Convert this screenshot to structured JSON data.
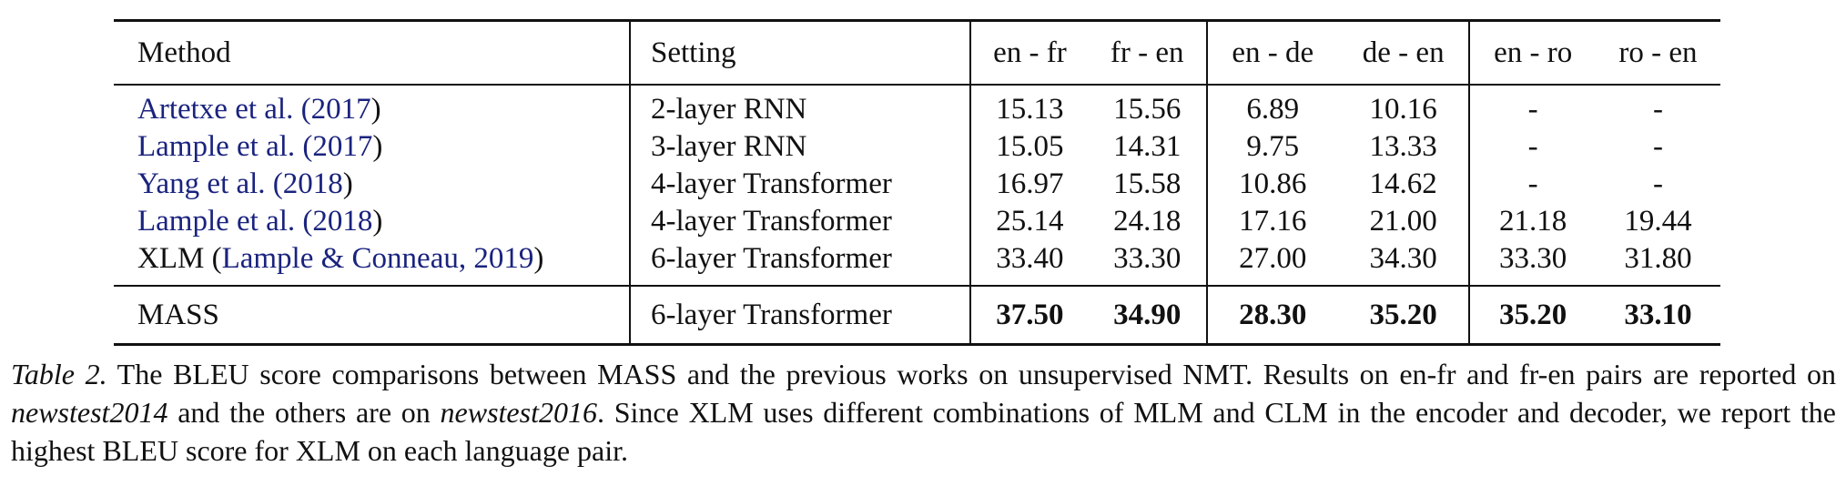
{
  "table": {
    "headers": [
      "Method",
      "Setting",
      "en - fr",
      "fr - en",
      "en - de",
      "de - en",
      "en - ro",
      "ro - en"
    ],
    "rows": [
      {
        "method_name": "Artetxe et al. (",
        "method_year": "2017",
        "method_close": ")",
        "setting": "2-layer RNN",
        "values": [
          "15.13",
          "15.56",
          "6.89",
          "10.16",
          "-",
          "-"
        ]
      },
      {
        "method_name": "Lample et al. (",
        "method_year": "2017",
        "method_close": ")",
        "setting": "3-layer RNN",
        "values": [
          "15.05",
          "14.31",
          "9.75",
          "13.33",
          "-",
          "-"
        ]
      },
      {
        "method_name": "Yang et al. (",
        "method_year": "2018",
        "method_close": ")",
        "setting": "4-layer Transformer",
        "values": [
          "16.97",
          "15.58",
          "10.86",
          "14.62",
          "-",
          "-"
        ]
      },
      {
        "method_name": "Lample et al. (",
        "method_year": "2018",
        "method_close": ")",
        "setting": "4-layer Transformer",
        "values": [
          "25.14",
          "24.18",
          "17.16",
          "21.00",
          "21.18",
          "19.44"
        ]
      },
      {
        "method_prefix": "XLM (",
        "method_name": "Lample & Conneau, ",
        "method_year": "2019",
        "method_close": ")",
        "setting": "6-layer Transformer",
        "values": [
          "33.40",
          "33.30",
          "27.00",
          "34.30",
          "33.30",
          "31.80"
        ]
      }
    ],
    "final_row": {
      "method": "MASS",
      "setting": "6-layer Transformer",
      "values": [
        "37.50",
        "34.90",
        "28.30",
        "35.20",
        "35.20",
        "33.10"
      ]
    }
  },
  "caption": {
    "label": "Table 2.",
    "part1": " The BLEU score comparisons between MASS and the previous works on unsupervised NMT. Results on en-fr and fr-en pairs are reported on ",
    "em1": "newstest2014",
    "part2": " and the others are on ",
    "em2": "newstest2016",
    "part3": ". Since XLM uses different combinations of MLM and CLM in the encoder and decoder, we report the highest BLEU score for XLM on each language pair."
  },
  "colors": {
    "citation": "#1a237e",
    "text": "#111111"
  }
}
